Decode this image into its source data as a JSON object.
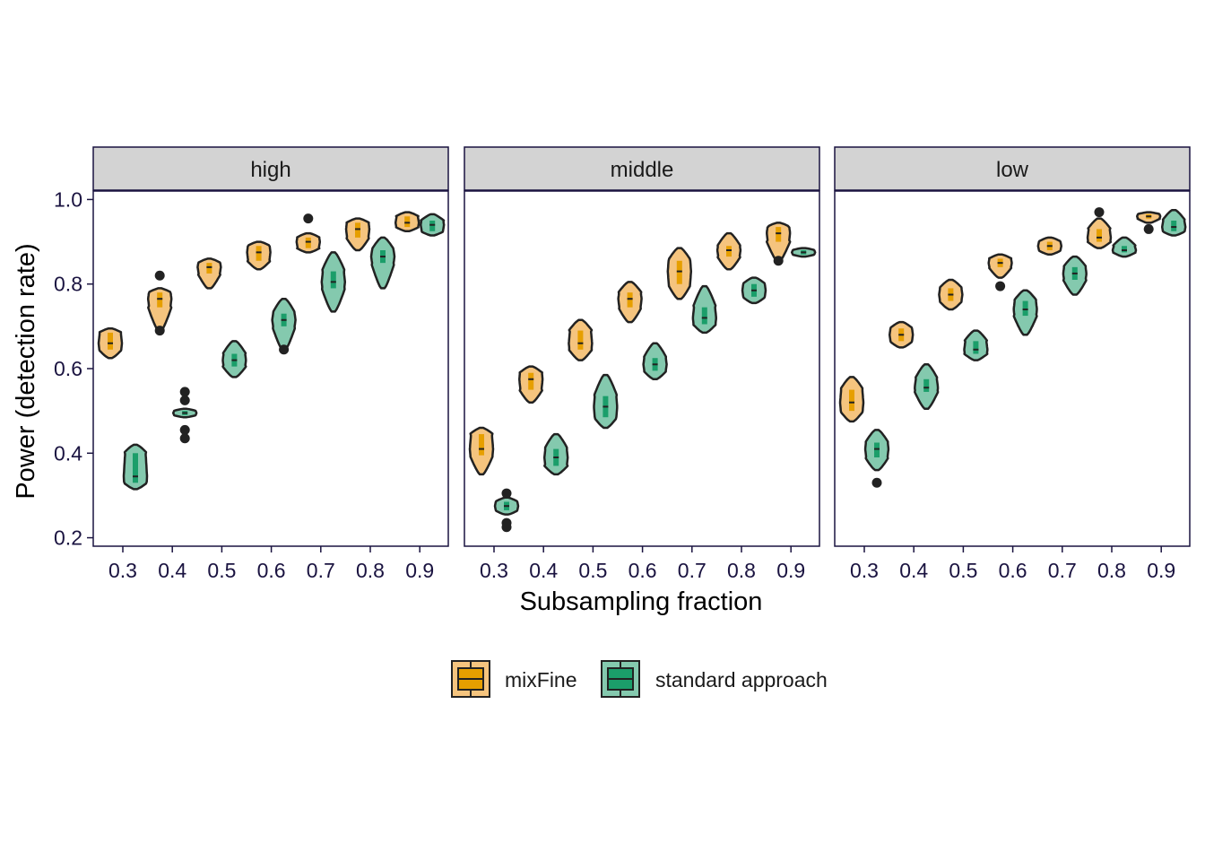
{
  "chart_data": {
    "type": "violin",
    "xlabel": "Subsampling fraction",
    "ylabel": "Power (detection rate)",
    "x_ticks": [
      "0.3",
      "0.4",
      "0.5",
      "0.6",
      "0.7",
      "0.8",
      "0.9"
    ],
    "y_ticks": [
      "0.2",
      "0.4",
      "0.6",
      "0.8",
      "1.0"
    ],
    "ylim": [
      0.18,
      1.02
    ],
    "grid": false,
    "legend_position": "bottom",
    "legend": [
      {
        "name": "mixFine",
        "fill": "#f5c47e",
        "box": "#e69f00"
      },
      {
        "name": "standard approach",
        "fill": "#84c9ae",
        "box": "#1b9e6a"
      }
    ],
    "panels": [
      {
        "title": "high",
        "series": [
          {
            "name": "mixFine",
            "x": [
              0.3,
              0.4,
              0.5,
              0.6,
              0.7,
              0.8,
              0.9
            ],
            "min": [
              0.625,
              0.69,
              0.79,
              0.835,
              0.875,
              0.88,
              0.925
            ],
            "q1": [
              0.645,
              0.745,
              0.825,
              0.855,
              0.885,
              0.91,
              0.935
            ],
            "median": [
              0.66,
              0.765,
              0.84,
              0.875,
              0.9,
              0.93,
              0.945
            ],
            "q3": [
              0.685,
              0.78,
              0.85,
              0.89,
              0.91,
              0.945,
              0.96
            ],
            "max": [
              0.695,
              0.79,
              0.86,
              0.9,
              0.92,
              0.955,
              0.97
            ],
            "outliers": [
              [],
              [
                0.82,
                0.69
              ],
              [],
              [],
              [
                0.955
              ],
              [],
              []
            ]
          },
          {
            "name": "standard approach",
            "x": [
              0.3,
              0.4,
              0.5,
              0.6,
              0.7,
              0.8,
              0.9
            ],
            "min": [
              0.315,
              0.485,
              0.58,
              0.645,
              0.735,
              0.79,
              0.915
            ],
            "q1": [
              0.33,
              0.49,
              0.605,
              0.7,
              0.79,
              0.85,
              0.925
            ],
            "median": [
              0.345,
              0.495,
              0.62,
              0.715,
              0.805,
              0.865,
              0.94
            ],
            "q3": [
              0.4,
              0.5,
              0.635,
              0.73,
              0.83,
              0.88,
              0.95
            ],
            "max": [
              0.42,
              0.505,
              0.665,
              0.765,
              0.875,
              0.91,
              0.965
            ],
            "outliers": [
              [],
              [
                0.545,
                0.525,
                0.455,
                0.435
              ],
              [],
              [
                0.645
              ],
              [],
              [],
              []
            ]
          }
        ]
      },
      {
        "title": "middle",
        "series": [
          {
            "name": "mixFine",
            "x": [
              0.3,
              0.4,
              0.5,
              0.6,
              0.7,
              0.8,
              0.9
            ],
            "min": [
              0.35,
              0.52,
              0.62,
              0.71,
              0.765,
              0.835,
              0.855
            ],
            "q1": [
              0.395,
              0.55,
              0.645,
              0.745,
              0.8,
              0.865,
              0.9
            ],
            "median": [
              0.41,
              0.575,
              0.66,
              0.765,
              0.83,
              0.88,
              0.92
            ],
            "q3": [
              0.445,
              0.59,
              0.69,
              0.78,
              0.855,
              0.89,
              0.935
            ],
            "max": [
              0.46,
              0.605,
              0.715,
              0.805,
              0.885,
              0.92,
              0.945
            ],
            "outliers": [
              [],
              [],
              [],
              [],
              [],
              [],
              [
                0.855
              ]
            ]
          },
          {
            "name": "standard approach",
            "x": [
              0.3,
              0.4,
              0.5,
              0.6,
              0.7,
              0.8,
              0.9
            ],
            "min": [
              0.255,
              0.35,
              0.46,
              0.575,
              0.685,
              0.755,
              0.865
            ],
            "q1": [
              0.265,
              0.37,
              0.485,
              0.595,
              0.705,
              0.77,
              0.87
            ],
            "median": [
              0.275,
              0.39,
              0.51,
              0.61,
              0.72,
              0.785,
              0.875
            ],
            "q3": [
              0.285,
              0.41,
              0.535,
              0.625,
              0.745,
              0.8,
              0.88
            ],
            "max": [
              0.295,
              0.445,
              0.585,
              0.66,
              0.795,
              0.815,
              0.885
            ],
            "outliers": [
              [
                0.305,
                0.235,
                0.225
              ],
              [],
              [],
              [],
              [],
              [],
              []
            ]
          }
        ]
      },
      {
        "title": "low",
        "series": [
          {
            "name": "mixFine",
            "x": [
              0.3,
              0.4,
              0.5,
              0.6,
              0.7,
              0.8,
              0.9
            ],
            "min": [
              0.475,
              0.65,
              0.74,
              0.815,
              0.87,
              0.885,
              0.945
            ],
            "q1": [
              0.5,
              0.665,
              0.76,
              0.84,
              0.88,
              0.9,
              0.955
            ],
            "median": [
              0.52,
              0.68,
              0.775,
              0.85,
              0.89,
              0.91,
              0.96
            ],
            "q3": [
              0.55,
              0.695,
              0.79,
              0.86,
              0.9,
              0.93,
              0.965
            ],
            "max": [
              0.58,
              0.71,
              0.81,
              0.87,
              0.91,
              0.955,
              0.97
            ],
            "outliers": [
              [],
              [],
              [],
              [
                0.795
              ],
              [],
              [
                0.97
              ],
              [
                0.93
              ]
            ]
          },
          {
            "name": "standard approach",
            "x": [
              0.3,
              0.4,
              0.5,
              0.6,
              0.7,
              0.8,
              0.9
            ],
            "min": [
              0.36,
              0.505,
              0.62,
              0.68,
              0.775,
              0.865,
              0.915
            ],
            "q1": [
              0.39,
              0.545,
              0.635,
              0.725,
              0.81,
              0.875,
              0.925
            ],
            "median": [
              0.41,
              0.555,
              0.645,
              0.74,
              0.825,
              0.88,
              0.935
            ],
            "q3": [
              0.425,
              0.575,
              0.665,
              0.76,
              0.84,
              0.89,
              0.95
            ],
            "max": [
              0.455,
              0.61,
              0.69,
              0.785,
              0.865,
              0.91,
              0.975
            ],
            "outliers": [
              [
                0.33
              ],
              [],
              [],
              [],
              [],
              [],
              []
            ]
          }
        ]
      }
    ]
  }
}
